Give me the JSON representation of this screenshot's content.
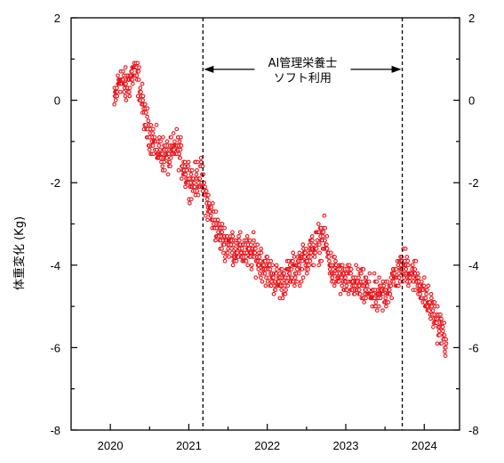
{
  "chart_data": {
    "type": "scatter",
    "title": "",
    "ylabel": "体重変化 (Kg)",
    "xlabel": "",
    "xlim": [
      2019.5,
      2024.45
    ],
    "ylim": [
      -8,
      2
    ],
    "x_ticks": [
      {
        "value": 2020,
        "label": "2020"
      },
      {
        "value": 2021,
        "label": "2021"
      },
      {
        "value": 2022,
        "label": "2022"
      },
      {
        "value": 2023,
        "label": "2023"
      },
      {
        "value": 2024,
        "label": "2024"
      }
    ],
    "y_ticks": [
      {
        "value": 2,
        "label": "2"
      },
      {
        "value": 0,
        "label": "0"
      },
      {
        "value": -2,
        "label": "-2"
      },
      {
        "value": -4,
        "label": "-4"
      },
      {
        "value": -6,
        "label": "-6"
      },
      {
        "value": -8,
        "label": "-8"
      }
    ],
    "marker_color": "#e8141b",
    "annotation": {
      "line1": "AI管理栄養士",
      "line2": "ソフト利用",
      "x_start": 2021.18,
      "x_end": 2023.72,
      "arrow_y": 0.75
    },
    "series": [
      {
        "trend_keyframes": [
          [
            2020.05,
            -0.1
          ],
          [
            2020.12,
            0.55
          ],
          [
            2020.2,
            0.3
          ],
          [
            2020.3,
            0.7
          ],
          [
            2020.36,
            0.5
          ],
          [
            2020.45,
            -0.55
          ],
          [
            2020.6,
            -1.2
          ],
          [
            2020.75,
            -1.4
          ],
          [
            2020.85,
            -1.1
          ],
          [
            2020.95,
            -1.7
          ],
          [
            2021.05,
            -2.0
          ],
          [
            2021.15,
            -1.8
          ],
          [
            2021.25,
            -2.6
          ],
          [
            2021.4,
            -3.3
          ],
          [
            2021.6,
            -3.6
          ],
          [
            2021.85,
            -3.75
          ],
          [
            2022.0,
            -4.1
          ],
          [
            2022.15,
            -4.45
          ],
          [
            2022.3,
            -4.2
          ],
          [
            2022.45,
            -3.9
          ],
          [
            2022.6,
            -3.6
          ],
          [
            2022.72,
            -3.3
          ],
          [
            2022.82,
            -4.1
          ],
          [
            2023.0,
            -4.4
          ],
          [
            2023.2,
            -4.5
          ],
          [
            2023.4,
            -4.8
          ],
          [
            2023.5,
            -4.7
          ],
          [
            2023.62,
            -4.3
          ],
          [
            2023.75,
            -4.0
          ],
          [
            2023.9,
            -4.3
          ],
          [
            2024.0,
            -4.7
          ],
          [
            2024.1,
            -5.1
          ],
          [
            2024.2,
            -5.5
          ],
          [
            2024.28,
            -5.85
          ]
        ],
        "x_range": [
          2020.05,
          2024.28
        ],
        "spread_kg": 0.38,
        "sample_count": 1150
      }
    ]
  }
}
